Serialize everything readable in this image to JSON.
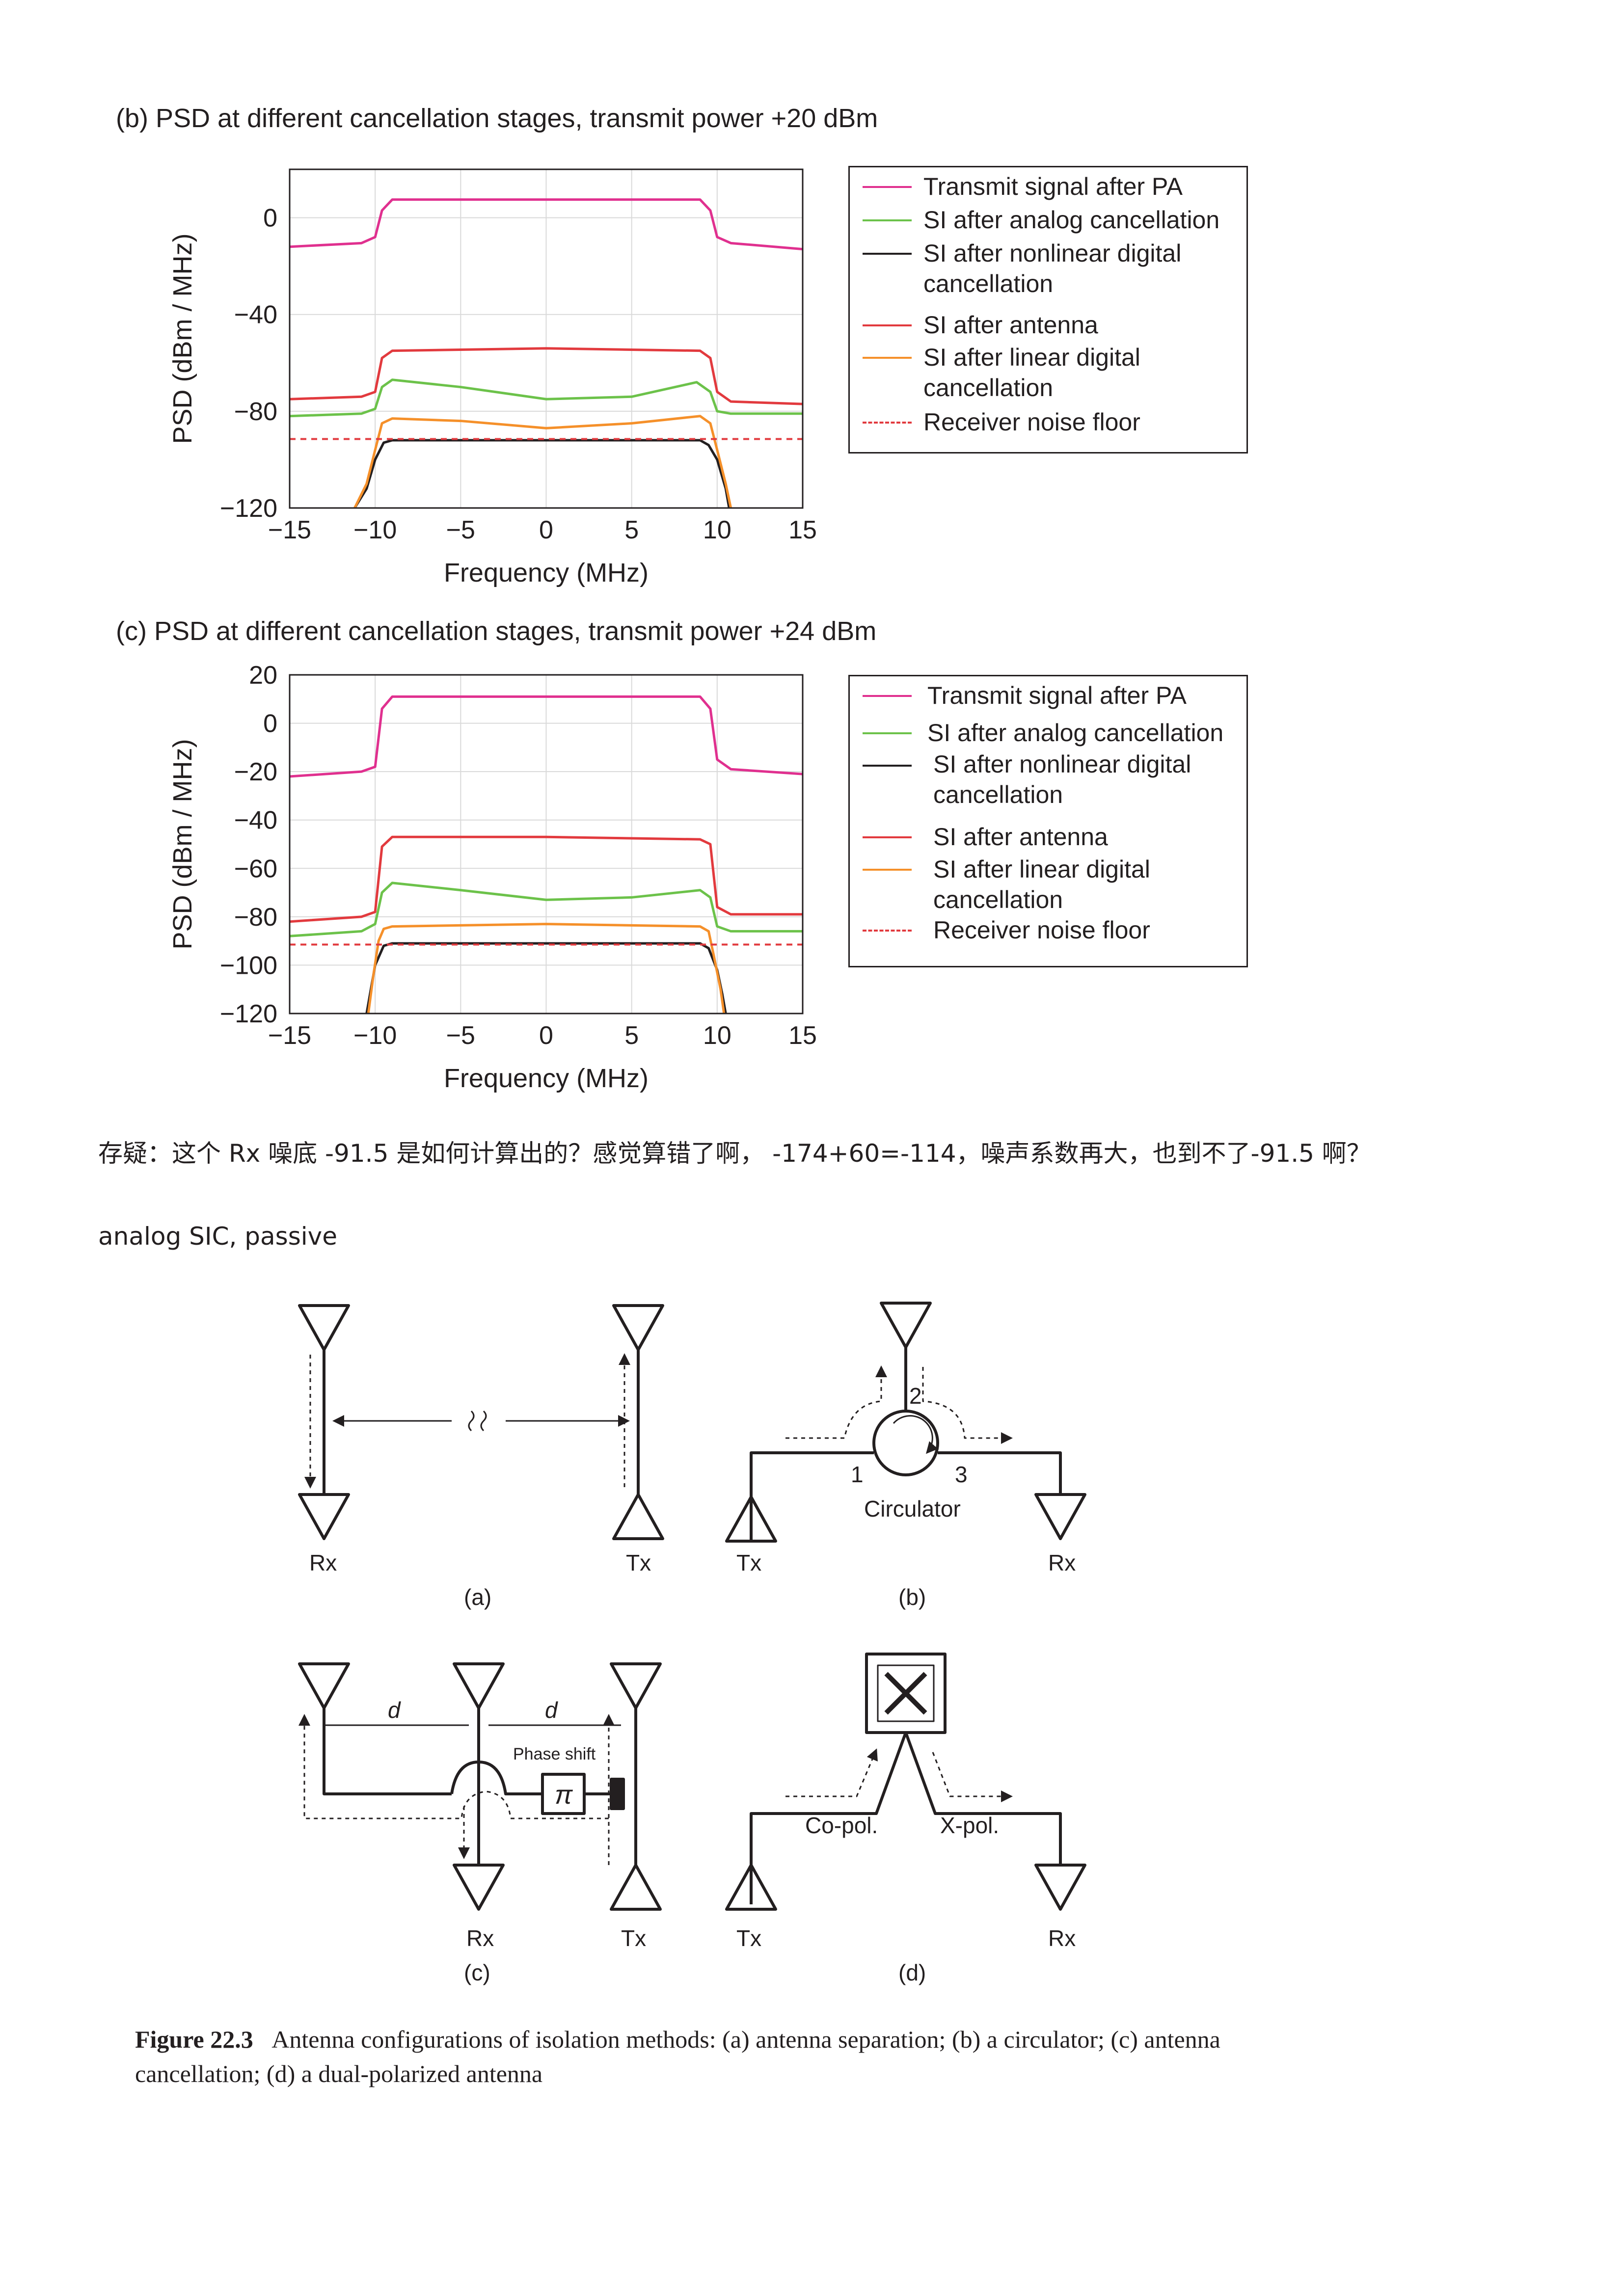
{
  "chart_data": [
    {
      "type": "line",
      "title": "(b)  PSD at different cancellation stages, transmit power +20 dBm",
      "xlabel": "Frequency (MHz)",
      "ylabel": "PSD (dBm / MHz)",
      "xlim": [
        -15,
        15
      ],
      "ylim": [
        -120,
        20
      ],
      "xticks": [
        -15,
        -10,
        -5,
        0,
        5,
        10,
        15
      ],
      "xtick_labels": [
        "−15",
        "−10",
        "−5",
        "0",
        "5",
        "10",
        "15"
      ],
      "yticks": [
        0,
        -40,
        -80,
        -120
      ],
      "ytick_labels": [
        "0",
        "−40",
        "−80",
        "−120"
      ],
      "grid": true,
      "legend_position": "right, outside",
      "series": [
        {
          "name": "Transmit signal after PA",
          "color": "#e0308f",
          "style": "solid",
          "x": [
            -15,
            -10.8,
            -10,
            -9.6,
            -9,
            0,
            9,
            9.6,
            10,
            10.8,
            15
          ],
          "y": [
            -12,
            -10.5,
            -8,
            3,
            7.5,
            7.5,
            7.5,
            3,
            -8,
            -10.5,
            -13
          ]
        },
        {
          "name": "SI after analog cancellation",
          "color": "#6cc24a",
          "style": "solid",
          "x": [
            -15,
            -10.8,
            -10,
            -9.6,
            -9,
            -5,
            0,
            5,
            8.8,
            9.6,
            10,
            10.8,
            15
          ],
          "y": [
            -82,
            -81,
            -79,
            -70,
            -67,
            -70,
            -75,
            -74,
            -68,
            -72,
            -80,
            -81,
            -81
          ]
        },
        {
          "name": "SI after nonlinear digital\ncancellation",
          "color": "#231f20",
          "style": "solid",
          "x": [
            -11.2,
            -10.5,
            -10,
            -9.5,
            -9,
            0,
            9,
            9.5,
            10,
            10.5,
            10.7
          ],
          "y": [
            -120,
            -112,
            -100,
            -93,
            -92,
            -92,
            -92,
            -94,
            -100,
            -112,
            -120
          ]
        },
        {
          "name": "SI after antenna",
          "color": "#e23a3e",
          "style": "solid",
          "x": [
            -15,
            -10.8,
            -10,
            -9.6,
            -9,
            0,
            9,
            9.6,
            10,
            10.8,
            15
          ],
          "y": [
            -75,
            -74,
            -72,
            -58,
            -55,
            -54,
            -55,
            -58,
            -72,
            -76,
            -77
          ]
        },
        {
          "name": "SI after linear digital\ncancellation",
          "color": "#f5902a",
          "style": "solid",
          "x": [
            -11.2,
            -10.5,
            -10,
            -9.6,
            -9,
            -5,
            0,
            5,
            9,
            9.6,
            10,
            10.5,
            10.8
          ],
          "y": [
            -120,
            -110,
            -96,
            -85,
            -83,
            -84,
            -87,
            -85,
            -82,
            -85,
            -96,
            -110,
            -120
          ]
        },
        {
          "name": "Receiver noise floor",
          "color": "#e23a3e",
          "style": "dashed",
          "x": [
            -15,
            15
          ],
          "y": [
            -91.5,
            -91.5
          ]
        }
      ]
    },
    {
      "type": "line",
      "title": "(c)  PSD at different cancellation stages, transmit power +24 dBm",
      "xlabel": "Frequency (MHz)",
      "ylabel": "PSD (dBm / MHz)",
      "xlim": [
        -15,
        15
      ],
      "ylim": [
        -120,
        20
      ],
      "xticks": [
        -15,
        -10,
        -5,
        0,
        5,
        10,
        15
      ],
      "xtick_labels": [
        "−15",
        "−10",
        "−5",
        "0",
        "5",
        "10",
        "15"
      ],
      "yticks": [
        20,
        0,
        -20,
        -40,
        -60,
        -80,
        -100,
        -120
      ],
      "ytick_labels": [
        "20",
        "0",
        "−20",
        "−40",
        "−60",
        "−80",
        "−100",
        "−120"
      ],
      "grid": true,
      "legend_position": "right, outside",
      "series": [
        {
          "name": "Transmit signal after PA",
          "color": "#e0308f",
          "style": "solid",
          "x": [
            -15,
            -10.8,
            -10,
            -9.6,
            -9,
            0,
            9,
            9.6,
            10,
            10.8,
            15
          ],
          "y": [
            -22,
            -20,
            -18,
            6,
            11,
            11,
            11,
            6,
            -15,
            -19,
            -21
          ]
        },
        {
          "name": "SI after analog cancellation",
          "color": "#6cc24a",
          "style": "solid",
          "x": [
            -15,
            -10.8,
            -10,
            -9.6,
            -9,
            -5,
            0,
            5,
            9,
            9.6,
            10,
            10.8,
            15
          ],
          "y": [
            -88,
            -86,
            -83,
            -70,
            -66,
            -69,
            -73,
            -72,
            -69,
            -72,
            -84,
            -86,
            -86
          ]
        },
        {
          "name": "SI after nonlinear digital\ncancellation",
          "color": "#231f20",
          "style": "solid",
          "x": [
            -10.5,
            -10.2,
            -10,
            -9.5,
            -9,
            0,
            9,
            9.5,
            10,
            10.3,
            10.5
          ],
          "y": [
            -120,
            -108,
            -100,
            -92,
            -91,
            -91,
            -91,
            -93,
            -102,
            -112,
            -120
          ]
        },
        {
          "name": "SI after antenna",
          "color": "#e23a3e",
          "style": "solid",
          "x": [
            -15,
            -10.8,
            -10,
            -9.6,
            -9,
            0,
            9,
            9.6,
            10,
            10.8,
            15
          ],
          "y": [
            -82,
            -80,
            -78,
            -51,
            -47,
            -47,
            -48,
            -50,
            -76,
            -79,
            -79
          ]
        },
        {
          "name": "SI after linear digital\ncancellation",
          "color": "#f5902a",
          "style": "solid",
          "x": [
            -10.4,
            -10.1,
            -9.8,
            -9.5,
            -9,
            0,
            9,
            9.5,
            9.8,
            10.2,
            10.4
          ],
          "y": [
            -120,
            -104,
            -90,
            -85,
            -84,
            -83,
            -84,
            -86,
            -96,
            -110,
            -120
          ]
        },
        {
          "name": "Receiver noise floor",
          "color": "#e23a3e",
          "style": "dashed",
          "x": [
            -15,
            15
          ],
          "y": [
            -91.5,
            -91.5
          ]
        }
      ]
    }
  ],
  "note_question": "存疑：这个 Rx  噪底  -91.5 是如何计算出的？感觉算错了啊，  -174+60=-114，噪声系数再大，也到不了-91.5 啊？",
  "note_heading": "analog SIC, passive",
  "figure": {
    "labels": {
      "rx": "Rx",
      "tx": "Tx",
      "circulator": "Circulator",
      "port1": "1",
      "port2": "2",
      "port3": "3",
      "d": "d",
      "phase_shift": "Phase shift",
      "pi": "π",
      "co_pol": "Co-pol.",
      "x_pol": "X-pol.",
      "sub_a": "(a)",
      "sub_b": "(b)",
      "sub_c": "(c)",
      "sub_d": "(d)"
    },
    "caption_label": "Figure 22.3",
    "caption_text": "Antenna configurations of isolation methods: (a) antenna separation; (b) a circulator; (c) antenna cancellation; (d) a dual-polarized antenna"
  }
}
